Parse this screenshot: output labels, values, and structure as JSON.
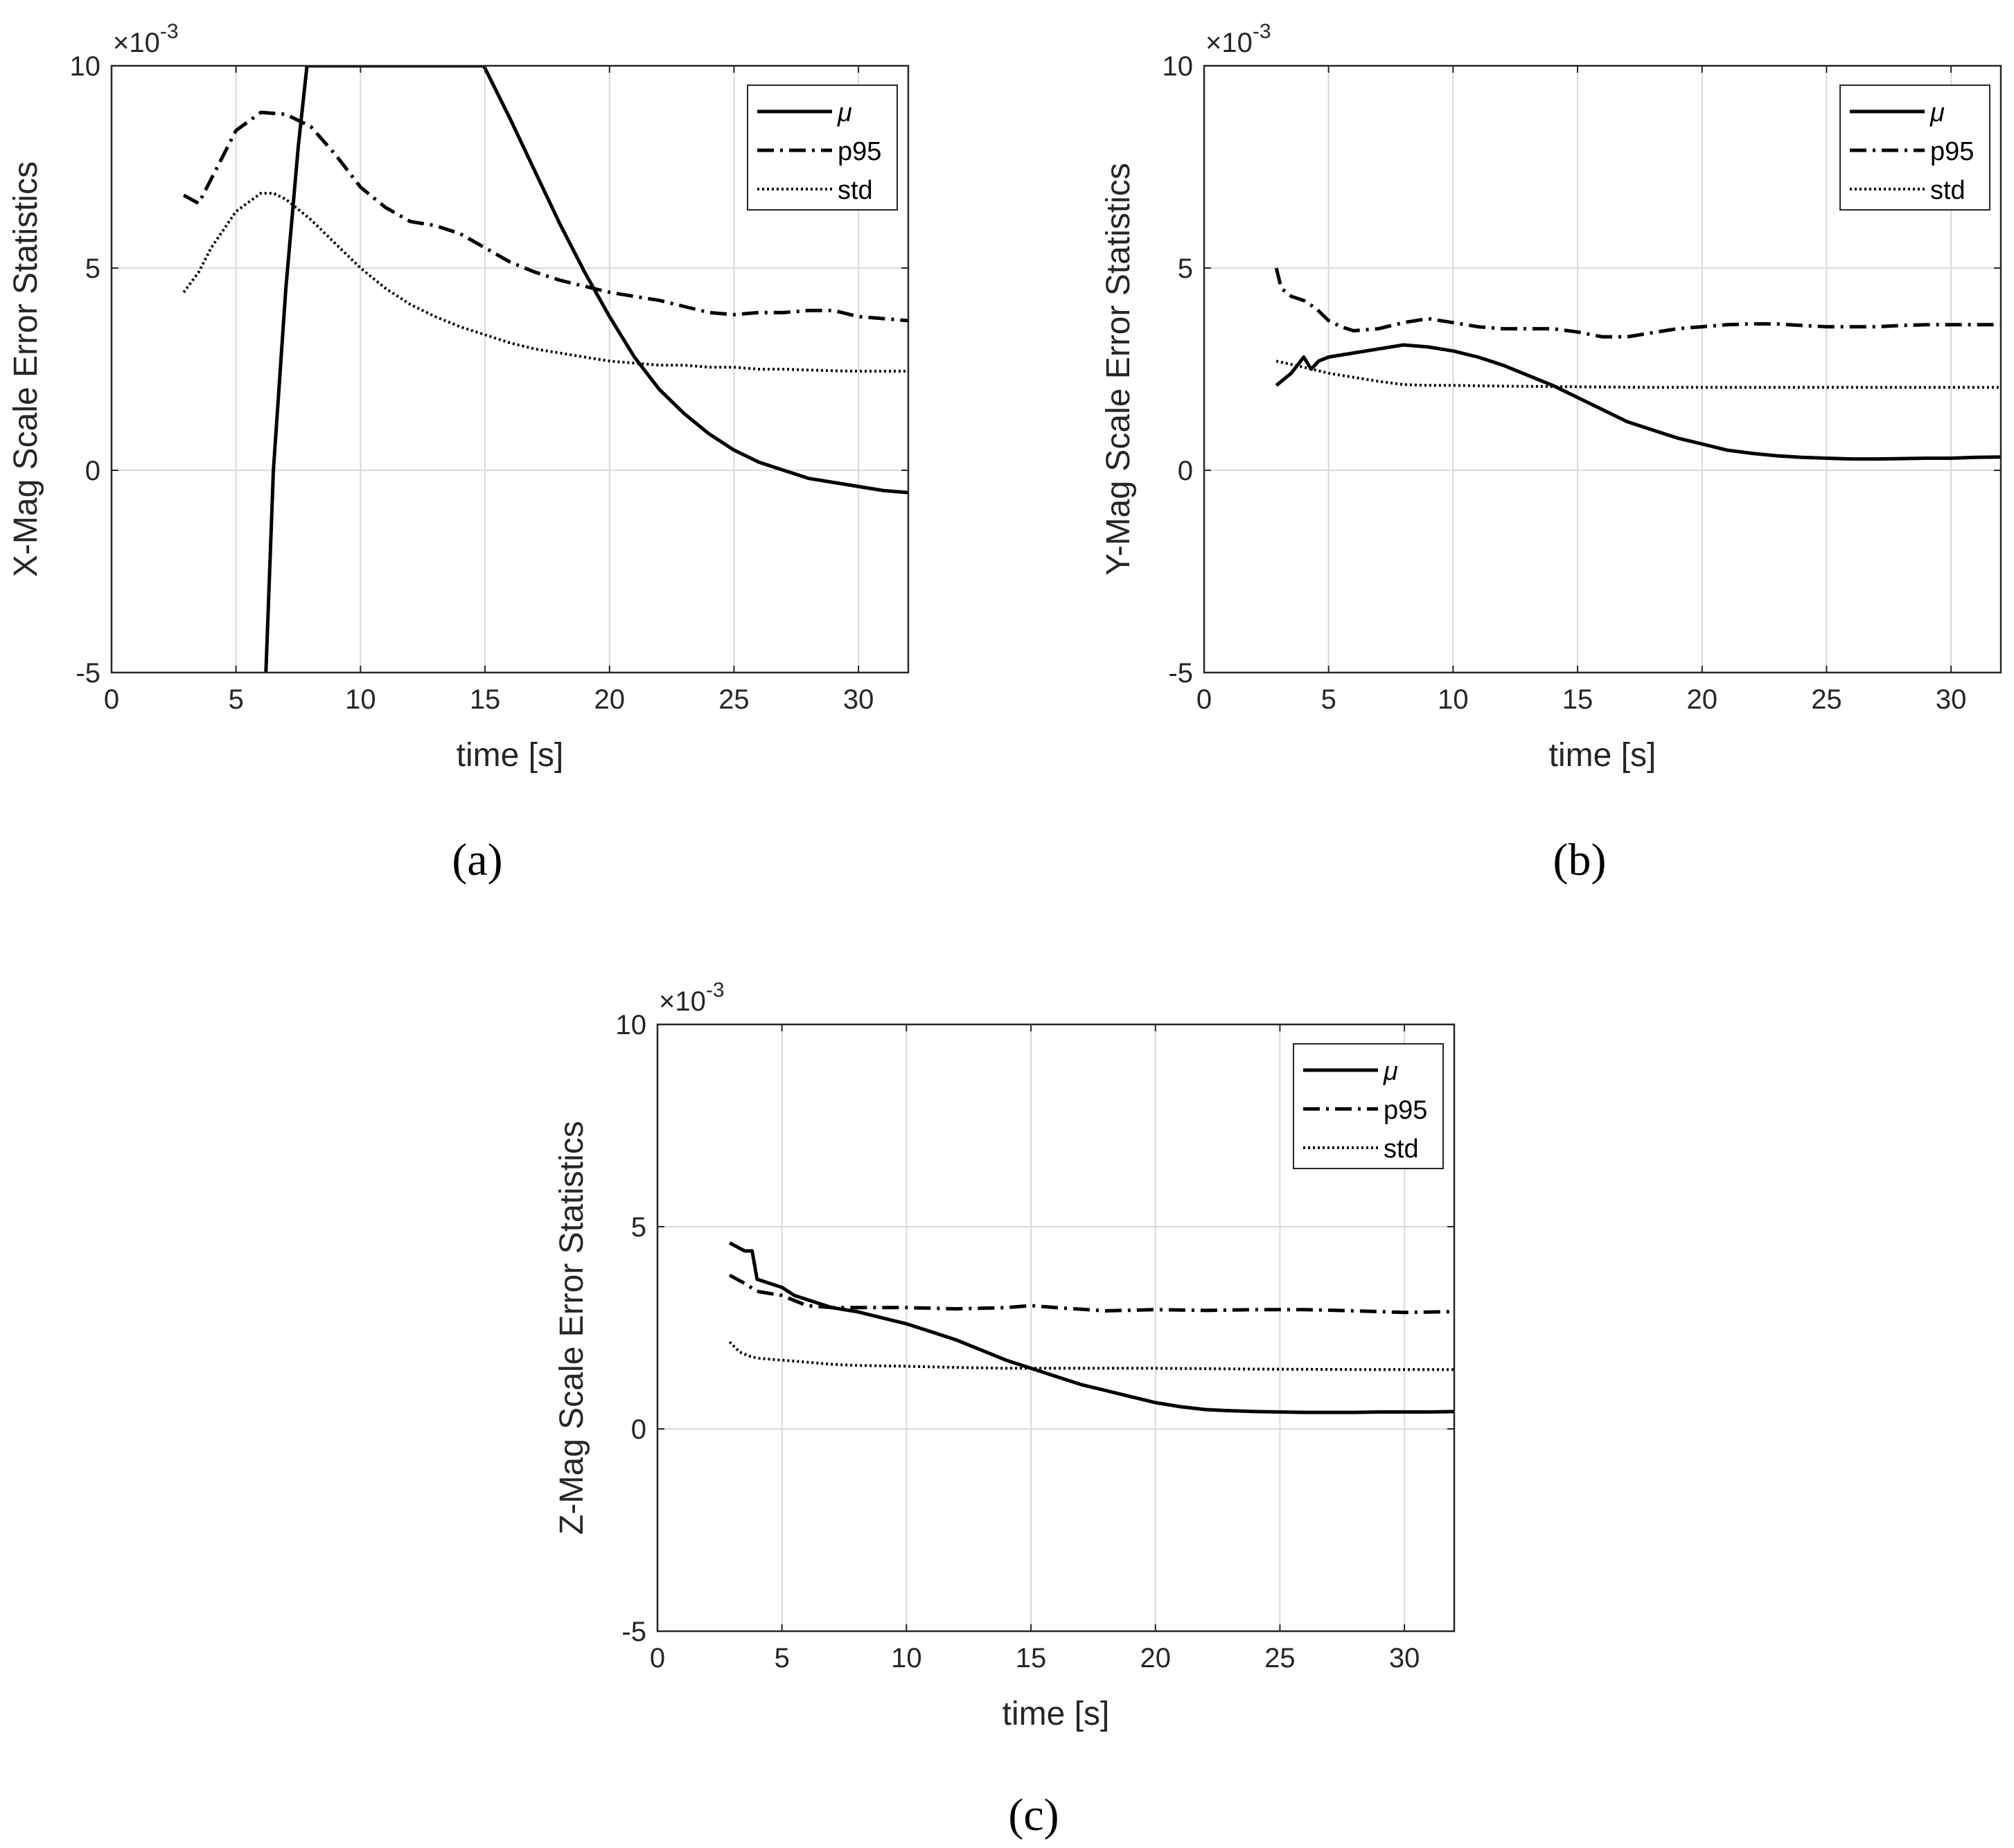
{
  "figure": {
    "panel_captions": [
      "(a)",
      "(b)",
      "(c)"
    ],
    "colors": {
      "axis": "#262626",
      "grid": "#d9d9d9",
      "series": "#000000",
      "background": "#ffffff"
    }
  },
  "chart_data": [
    {
      "id": "a",
      "type": "line",
      "caption": "(a)",
      "title": "",
      "xlabel": "time [s]",
      "ylabel": "X-Mag Scale Error Statistics",
      "y_multiplier_label": "×10",
      "y_multiplier_exponent": "-3",
      "xlim": [
        0,
        32
      ],
      "ylim": [
        -5,
        10
      ],
      "xticks": [
        0,
        5,
        10,
        15,
        20,
        25,
        30
      ],
      "yticks": [
        -5,
        0,
        5,
        10
      ],
      "grid": true,
      "legend_position": "top-right",
      "series": [
        {
          "name": "μ",
          "style": "solid",
          "x": [
            6.2,
            6.5,
            7.0,
            7.5,
            7.85,
            14.95,
            16,
            17,
            18,
            19,
            20,
            21,
            22,
            23,
            24,
            25,
            26,
            27,
            28,
            29,
            30,
            31,
            32
          ],
          "y": [
            -5.0,
            0.0,
            4.5,
            8.0,
            10.0,
            10.0,
            8.7,
            7.4,
            6.1,
            4.9,
            3.8,
            2.8,
            2.0,
            1.4,
            0.9,
            0.5,
            0.2,
            0.0,
            -0.2,
            -0.3,
            -0.4,
            -0.5,
            -0.55
          ]
        },
        {
          "name": "p95",
          "style": "dashdot",
          "x": [
            2.9,
            3.5,
            4.0,
            5.0,
            6.0,
            7.0,
            8.0,
            9.0,
            10.0,
            11.0,
            12.0,
            13.0,
            14.0,
            15.0,
            16.0,
            17.0,
            18.0,
            19.0,
            20.0,
            21.0,
            22.0,
            23.0,
            24.0,
            25.0,
            26.0,
            27.0,
            28.0,
            29.0,
            30.0,
            31.0,
            32.0
          ],
          "y": [
            6.8,
            6.6,
            7.2,
            8.4,
            8.85,
            8.8,
            8.5,
            7.8,
            7.0,
            6.5,
            6.15,
            6.05,
            5.85,
            5.5,
            5.15,
            4.9,
            4.7,
            4.55,
            4.4,
            4.3,
            4.2,
            4.05,
            3.9,
            3.85,
            3.9,
            3.9,
            3.95,
            3.95,
            3.8,
            3.75,
            3.7
          ]
        },
        {
          "name": "std",
          "style": "dotted",
          "x": [
            2.9,
            3.5,
            4.0,
            5.0,
            6.0,
            6.5,
            7.0,
            8.0,
            9.0,
            10.0,
            11.0,
            12.0,
            13.0,
            14.0,
            15.0,
            16.0,
            17.0,
            18.0,
            19.0,
            20.0,
            21.0,
            22.0,
            23.0,
            24.0,
            25.0,
            26.0,
            27.0,
            28.0,
            29.0,
            30.0,
            31.0,
            32.0
          ],
          "y": [
            4.4,
            4.9,
            5.5,
            6.4,
            6.85,
            6.85,
            6.7,
            6.2,
            5.6,
            5.0,
            4.5,
            4.1,
            3.8,
            3.55,
            3.35,
            3.15,
            3.0,
            2.9,
            2.8,
            2.7,
            2.65,
            2.6,
            2.6,
            2.55,
            2.55,
            2.5,
            2.5,
            2.48,
            2.46,
            2.45,
            2.45,
            2.45
          ]
        }
      ]
    },
    {
      "id": "b",
      "type": "line",
      "caption": "(b)",
      "title": "",
      "xlabel": "time [s]",
      "ylabel": "Y-Mag Scale Error Statistics",
      "y_multiplier_label": "×10",
      "y_multiplier_exponent": "-3",
      "xlim": [
        0,
        32
      ],
      "ylim": [
        -5,
        10
      ],
      "xticks": [
        0,
        5,
        10,
        15,
        20,
        25,
        30
      ],
      "yticks": [
        -5,
        0,
        5,
        10
      ],
      "grid": true,
      "legend_position": "top-right",
      "series": [
        {
          "name": "μ",
          "style": "solid",
          "x": [
            2.9,
            3.5,
            4.0,
            4.3,
            4.6,
            5.0,
            6.0,
            7.0,
            8.0,
            9.0,
            10.0,
            11.0,
            12.0,
            13.0,
            14.0,
            15.0,
            16.0,
            17.0,
            18.0,
            19.0,
            20.0,
            21.0,
            22.0,
            23.0,
            24.0,
            25.0,
            26.0,
            27.0,
            28.0,
            29.0,
            30.0,
            31.0,
            32.0
          ],
          "y": [
            2.1,
            2.4,
            2.8,
            2.5,
            2.7,
            2.8,
            2.9,
            3.0,
            3.1,
            3.05,
            2.95,
            2.8,
            2.6,
            2.35,
            2.1,
            1.8,
            1.5,
            1.2,
            1.0,
            0.8,
            0.65,
            0.5,
            0.42,
            0.36,
            0.32,
            0.3,
            0.28,
            0.28,
            0.29,
            0.3,
            0.3,
            0.32,
            0.33
          ]
        },
        {
          "name": "p95",
          "style": "dashdot",
          "x": [
            2.9,
            3.1,
            3.5,
            4.0,
            4.5,
            5.0,
            5.5,
            6.0,
            7.0,
            8.0,
            9.0,
            10.0,
            11.0,
            12.0,
            13.0,
            14.0,
            15.0,
            16.0,
            17.0,
            18.0,
            19.0,
            20.0,
            21.0,
            22.0,
            23.0,
            24.0,
            25.0,
            26.0,
            27.0,
            28.0,
            29.0,
            30.0,
            31.0,
            32.0
          ],
          "y": [
            5.0,
            4.5,
            4.3,
            4.2,
            4.0,
            3.7,
            3.55,
            3.45,
            3.5,
            3.65,
            3.75,
            3.65,
            3.55,
            3.5,
            3.5,
            3.5,
            3.42,
            3.3,
            3.3,
            3.4,
            3.5,
            3.55,
            3.6,
            3.62,
            3.62,
            3.58,
            3.55,
            3.55,
            3.55,
            3.58,
            3.6,
            3.6,
            3.6,
            3.6
          ]
        },
        {
          "name": "std",
          "style": "dotted",
          "x": [
            2.9,
            4.0,
            5.0,
            6.0,
            7.0,
            8.0,
            9.0,
            10.0,
            12.0,
            14.0,
            16.0,
            18.0,
            20.0,
            22.0,
            24.0,
            26.0,
            28.0,
            30.0,
            32.0
          ],
          "y": [
            2.7,
            2.55,
            2.4,
            2.3,
            2.2,
            2.12,
            2.1,
            2.1,
            2.08,
            2.07,
            2.06,
            2.05,
            2.05,
            2.05,
            2.05,
            2.05,
            2.05,
            2.05,
            2.05
          ]
        }
      ]
    },
    {
      "id": "c",
      "type": "line",
      "caption": "(c)",
      "title": "",
      "xlabel": "time [s]",
      "ylabel": "Z-Mag Scale Error Statistics",
      "y_multiplier_label": "×10",
      "y_multiplier_exponent": "-3",
      "xlim": [
        0,
        32
      ],
      "ylim": [
        -5,
        10
      ],
      "xticks": [
        0,
        5,
        10,
        15,
        20,
        25,
        30
      ],
      "yticks": [
        -5,
        0,
        5,
        10
      ],
      "grid": true,
      "legend_position": "top-right",
      "series": [
        {
          "name": "μ",
          "style": "solid",
          "x": [
            2.9,
            3.2,
            3.5,
            3.8,
            4.0,
            4.5,
            5.0,
            5.5,
            6.0,
            6.5,
            7.0,
            8.0,
            9.0,
            10.0,
            11.0,
            12.0,
            13.0,
            14.0,
            15.0,
            16.0,
            17.0,
            18.0,
            19.0,
            20.0,
            21.0,
            22.0,
            23.0,
            24.0,
            25.0,
            26.0,
            27.0,
            28.0,
            29.0,
            30.0,
            31.0,
            32.0
          ],
          "y": [
            4.6,
            4.5,
            4.4,
            4.4,
            3.7,
            3.6,
            3.5,
            3.3,
            3.2,
            3.1,
            3.0,
            2.9,
            2.75,
            2.6,
            2.4,
            2.2,
            1.95,
            1.7,
            1.5,
            1.3,
            1.1,
            0.95,
            0.8,
            0.65,
            0.55,
            0.48,
            0.45,
            0.43,
            0.42,
            0.41,
            0.41,
            0.41,
            0.42,
            0.42,
            0.42,
            0.43
          ]
        },
        {
          "name": "p95",
          "style": "dashdot",
          "x": [
            2.9,
            3.5,
            4.0,
            5.0,
            6.0,
            7.0,
            8.0,
            10.0,
            12.0,
            14.0,
            15.0,
            16.0,
            18.0,
            20.0,
            22.0,
            24.0,
            26.0,
            28.0,
            30.0,
            32.0
          ],
          "y": [
            3.8,
            3.6,
            3.4,
            3.3,
            3.05,
            3.0,
            3.0,
            3.0,
            2.97,
            3.0,
            3.05,
            3.0,
            2.92,
            2.95,
            2.93,
            2.95,
            2.95,
            2.92,
            2.88,
            2.9
          ]
        },
        {
          "name": "std",
          "style": "dotted",
          "x": [
            2.9,
            3.3,
            3.7,
            4.0,
            5.0,
            6.0,
            7.0,
            8.0,
            10.0,
            12.0,
            14.0,
            16.0,
            18.0,
            20.0,
            24.0,
            28.0,
            32.0
          ],
          "y": [
            2.15,
            1.9,
            1.8,
            1.75,
            1.7,
            1.65,
            1.6,
            1.57,
            1.55,
            1.52,
            1.5,
            1.5,
            1.5,
            1.5,
            1.48,
            1.47,
            1.47
          ]
        }
      ]
    }
  ]
}
